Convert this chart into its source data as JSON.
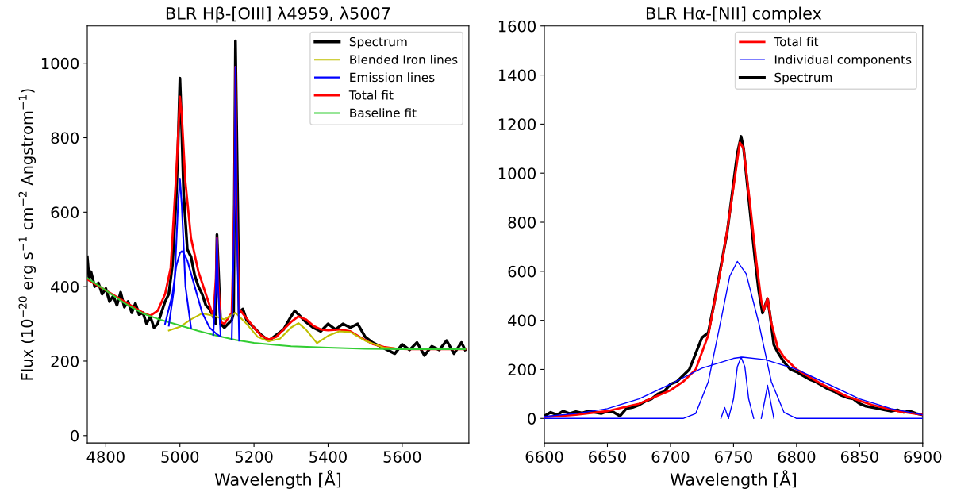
{
  "chart_data": [
    {
      "type": "line",
      "title": "BLR Hβ-[OIII] λ4959, λ5007",
      "xlabel": "Wavelength [Å]",
      "ylabel": "Flux (10$^{−20}$ erg s$^{−1}$ cm$^{−2}$ Angstrom$^{−1}$)",
      "xlim": [
        4750,
        5780
      ],
      "ylim": [
        -20,
        1100
      ],
      "xticks": [
        4800,
        5000,
        5200,
        5400,
        5600
      ],
      "yticks": [
        0,
        200,
        400,
        600,
        800,
        1000
      ],
      "grid": false,
      "legend": "top right",
      "series": [
        {
          "name": "Spectrum",
          "color": "#000000",
          "x": [
            4750,
            4755,
            4760,
            4770,
            4780,
            4790,
            4800,
            4810,
            4820,
            4830,
            4840,
            4850,
            4860,
            4870,
            4880,
            4890,
            4900,
            4910,
            4920,
            4930,
            4940,
            4950,
            4960,
            4970,
            4980,
            4990,
            4995,
            5000,
            5005,
            5010,
            5020,
            5030,
            5040,
            5050,
            5060,
            5070,
            5080,
            5090,
            5097,
            5100,
            5105,
            5110,
            5120,
            5130,
            5140,
            5145,
            5150,
            5155,
            5160,
            5170,
            5180,
            5190,
            5200,
            5220,
            5240,
            5260,
            5280,
            5300,
            5310,
            5320,
            5340,
            5360,
            5380,
            5400,
            5420,
            5440,
            5460,
            5480,
            5500,
            5520,
            5540,
            5560,
            5580,
            5600,
            5620,
            5640,
            5660,
            5680,
            5700,
            5720,
            5740,
            5760,
            5770
          ],
          "values": [
            480,
            420,
            440,
            400,
            410,
            380,
            395,
            360,
            375,
            350,
            385,
            345,
            360,
            330,
            355,
            325,
            330,
            300,
            320,
            290,
            300,
            330,
            360,
            380,
            460,
            640,
            780,
            960,
            820,
            650,
            500,
            480,
            430,
            400,
            380,
            350,
            340,
            320,
            300,
            540,
            420,
            300,
            290,
            300,
            310,
            330,
            1060,
            700,
            330,
            340,
            310,
            300,
            290,
            270,
            255,
            270,
            285,
            320,
            335,
            325,
            305,
            290,
            280,
            300,
            285,
            300,
            290,
            300,
            265,
            250,
            240,
            230,
            220,
            245,
            230,
            250,
            215,
            240,
            230,
            255,
            220,
            250,
            230
          ]
        },
        {
          "name": "Blended Iron lines",
          "color": "#bfbf00",
          "x": [
            4970,
            5000,
            5030,
            5060,
            5090,
            5120,
            5150,
            5180,
            5210,
            5240,
            5270,
            5300,
            5320,
            5340,
            5370,
            5400,
            5430,
            5460,
            5500,
            5550,
            5600
          ],
          "values": [
            282,
            292,
            312,
            328,
            322,
            312,
            330,
            300,
            265,
            253,
            260,
            290,
            302,
            285,
            248,
            268,
            280,
            278,
            255,
            236,
            233
          ]
        },
        {
          "name": "Emission lines",
          "color": "#0000ff",
          "x": [
            4960,
            4980,
            4990,
            5000,
            5005,
            5010,
            5020,
            5040,
            5060,
            5080,
            5100,
            5110
          ],
          "values": [
            300,
            380,
            455,
            490,
            495,
            490,
            470,
            400,
            330,
            290,
            272,
            266
          ]
        },
        {
          "color": "#0000ff",
          "x": [
            4970,
            4985,
            4995,
            5000,
            5005,
            5015,
            5030
          ],
          "values": [
            295,
            400,
            620,
            690,
            620,
            400,
            290
          ]
        },
        {
          "color": "#0000ff",
          "x": [
            5090,
            5097,
            5100,
            5103,
            5110
          ],
          "values": [
            270,
            400,
            530,
            400,
            266
          ]
        },
        {
          "color": "#0000ff",
          "x": [
            5140,
            5147,
            5150,
            5153,
            5160
          ],
          "values": [
            258,
            600,
            990,
            600,
            255
          ]
        },
        {
          "name": "Total fit",
          "color": "#ff0000",
          "x": [
            4750,
            4800,
            4850,
            4900,
            4920,
            4940,
            4960,
            4975,
            4990,
            5000,
            5005,
            5015,
            5030,
            5050,
            5070,
            5090,
            5097,
            5100,
            5103,
            5110,
            5120,
            5140,
            5147,
            5150,
            5153,
            5160,
            5180,
            5200,
            5220,
            5240,
            5260,
            5280,
            5300,
            5320,
            5340,
            5360,
            5380,
            5400,
            5430,
            5460,
            5490,
            5520,
            5550,
            5580,
            5620,
            5700,
            5770
          ],
          "values": [
            420,
            390,
            360,
            330,
            322,
            335,
            380,
            450,
            700,
            910,
            860,
            680,
            530,
            440,
            380,
            320,
            420,
            530,
            420,
            305,
            300,
            330,
            620,
            990,
            620,
            340,
            315,
            290,
            268,
            258,
            265,
            285,
            305,
            320,
            312,
            295,
            285,
            283,
            285,
            280,
            262,
            246,
            238,
            234,
            232,
            232,
            232
          ]
        },
        {
          "name": "Baseline fit",
          "color": "#32cd32",
          "x": [
            4750,
            4800,
            4850,
            4900,
            4950,
            5000,
            5050,
            5100,
            5150,
            5200,
            5250,
            5300,
            5400,
            5500,
            5600,
            5700,
            5770
          ],
          "values": [
            423,
            390,
            356,
            328,
            310,
            296,
            281,
            268,
            257,
            249,
            244,
            240,
            236,
            233,
            232,
            232,
            232
          ]
        }
      ]
    },
    {
      "type": "line",
      "title": "BLR Hα-[NII] complex",
      "xlabel": "Wavelength [Å]",
      "xlim": [
        6600,
        6900
      ],
      "ylim": [
        -100,
        1600
      ],
      "xticks": [
        6600,
        6650,
        6700,
        6750,
        6800,
        6850,
        6900
      ],
      "yticks": [
        0,
        200,
        400,
        600,
        800,
        1000,
        1200,
        1400,
        1600
      ],
      "grid": false,
      "legend": "top right",
      "series": [
        {
          "name": "Total fit",
          "color": "#ff0000",
          "x": [
            6600,
            6625,
            6650,
            6675,
            6700,
            6710,
            6720,
            6730,
            6741,
            6746,
            6751,
            6755,
            6758,
            6763,
            6768,
            6772,
            6774,
            6777,
            6780,
            6785,
            6790,
            6800,
            6820,
            6840,
            6860,
            6880,
            6900
          ],
          "values": [
            5,
            15,
            30,
            60,
            115,
            150,
            200,
            340,
            640,
            800,
            980,
            1125,
            1100,
            880,
            644,
            480,
            440,
            490,
            390,
            290,
            250,
            200,
            140,
            90,
            55,
            30,
            15
          ]
        },
        {
          "name": "Individual components",
          "color": "#0000ff",
          "x": [
            6600,
            6625,
            6650,
            6675,
            6700,
            6725,
            6750,
            6757,
            6775,
            6800,
            6825,
            6850,
            6875,
            6900
          ],
          "values": [
            8,
            20,
            40,
            80,
            140,
            205,
            245,
            250,
            240,
            200,
            140,
            80,
            40,
            15
          ]
        },
        {
          "color": "#0000ff",
          "x": [
            6600,
            6710,
            6720,
            6730,
            6740,
            6747,
            6753,
            6760,
            6770,
            6780,
            6790,
            6800,
            6900
          ],
          "values": [
            0,
            0,
            20,
            150,
            400,
            580,
            640,
            590,
            390,
            150,
            25,
            0,
            0
          ]
        },
        {
          "color": "#0000ff",
          "x": [
            6740,
            6743,
            6746
          ],
          "values": [
            0,
            45,
            0
          ]
        },
        {
          "color": "#0000ff",
          "x": [
            6746,
            6750,
            6753,
            6756,
            6759,
            6762,
            6766
          ],
          "values": [
            0,
            80,
            210,
            250,
            210,
            80,
            0
          ]
        },
        {
          "color": "#0000ff",
          "x": [
            6772,
            6775,
            6777,
            6779,
            6782
          ],
          "values": [
            0,
            80,
            135,
            80,
            0
          ]
        },
        {
          "name": "Spectrum",
          "color": "#000000",
          "x": [
            6600,
            6605,
            6610,
            6615,
            6620,
            6625,
            6630,
            6635,
            6640,
            6645,
            6650,
            6655,
            6660,
            6665,
            6670,
            6675,
            6680,
            6685,
            6690,
            6695,
            6700,
            6705,
            6710,
            6715,
            6720,
            6725,
            6730,
            6735,
            6740,
            6745,
            6750,
            6753,
            6756,
            6758,
            6761,
            6764,
            6767,
            6770,
            6773,
            6775,
            6777,
            6779,
            6782,
            6785,
            6790,
            6795,
            6800,
            6805,
            6810,
            6815,
            6820,
            6825,
            6830,
            6835,
            6840,
            6845,
            6850,
            6855,
            6860,
            6865,
            6870,
            6875,
            6880,
            6885,
            6890,
            6895,
            6900
          ],
          "values": [
            10,
            25,
            15,
            30,
            20,
            28,
            22,
            30,
            25,
            20,
            30,
            25,
            10,
            40,
            45,
            55,
            70,
            80,
            100,
            110,
            140,
            150,
            175,
            200,
            265,
            330,
            350,
            480,
            620,
            760,
            960,
            1080,
            1150,
            1100,
            950,
            800,
            650,
            520,
            430,
            460,
            488,
            420,
            300,
            270,
            230,
            200,
            190,
            175,
            160,
            150,
            135,
            120,
            110,
            95,
            85,
            80,
            60,
            50,
            45,
            40,
            35,
            30,
            35,
            25,
            30,
            20,
            15
          ]
        }
      ]
    }
  ]
}
